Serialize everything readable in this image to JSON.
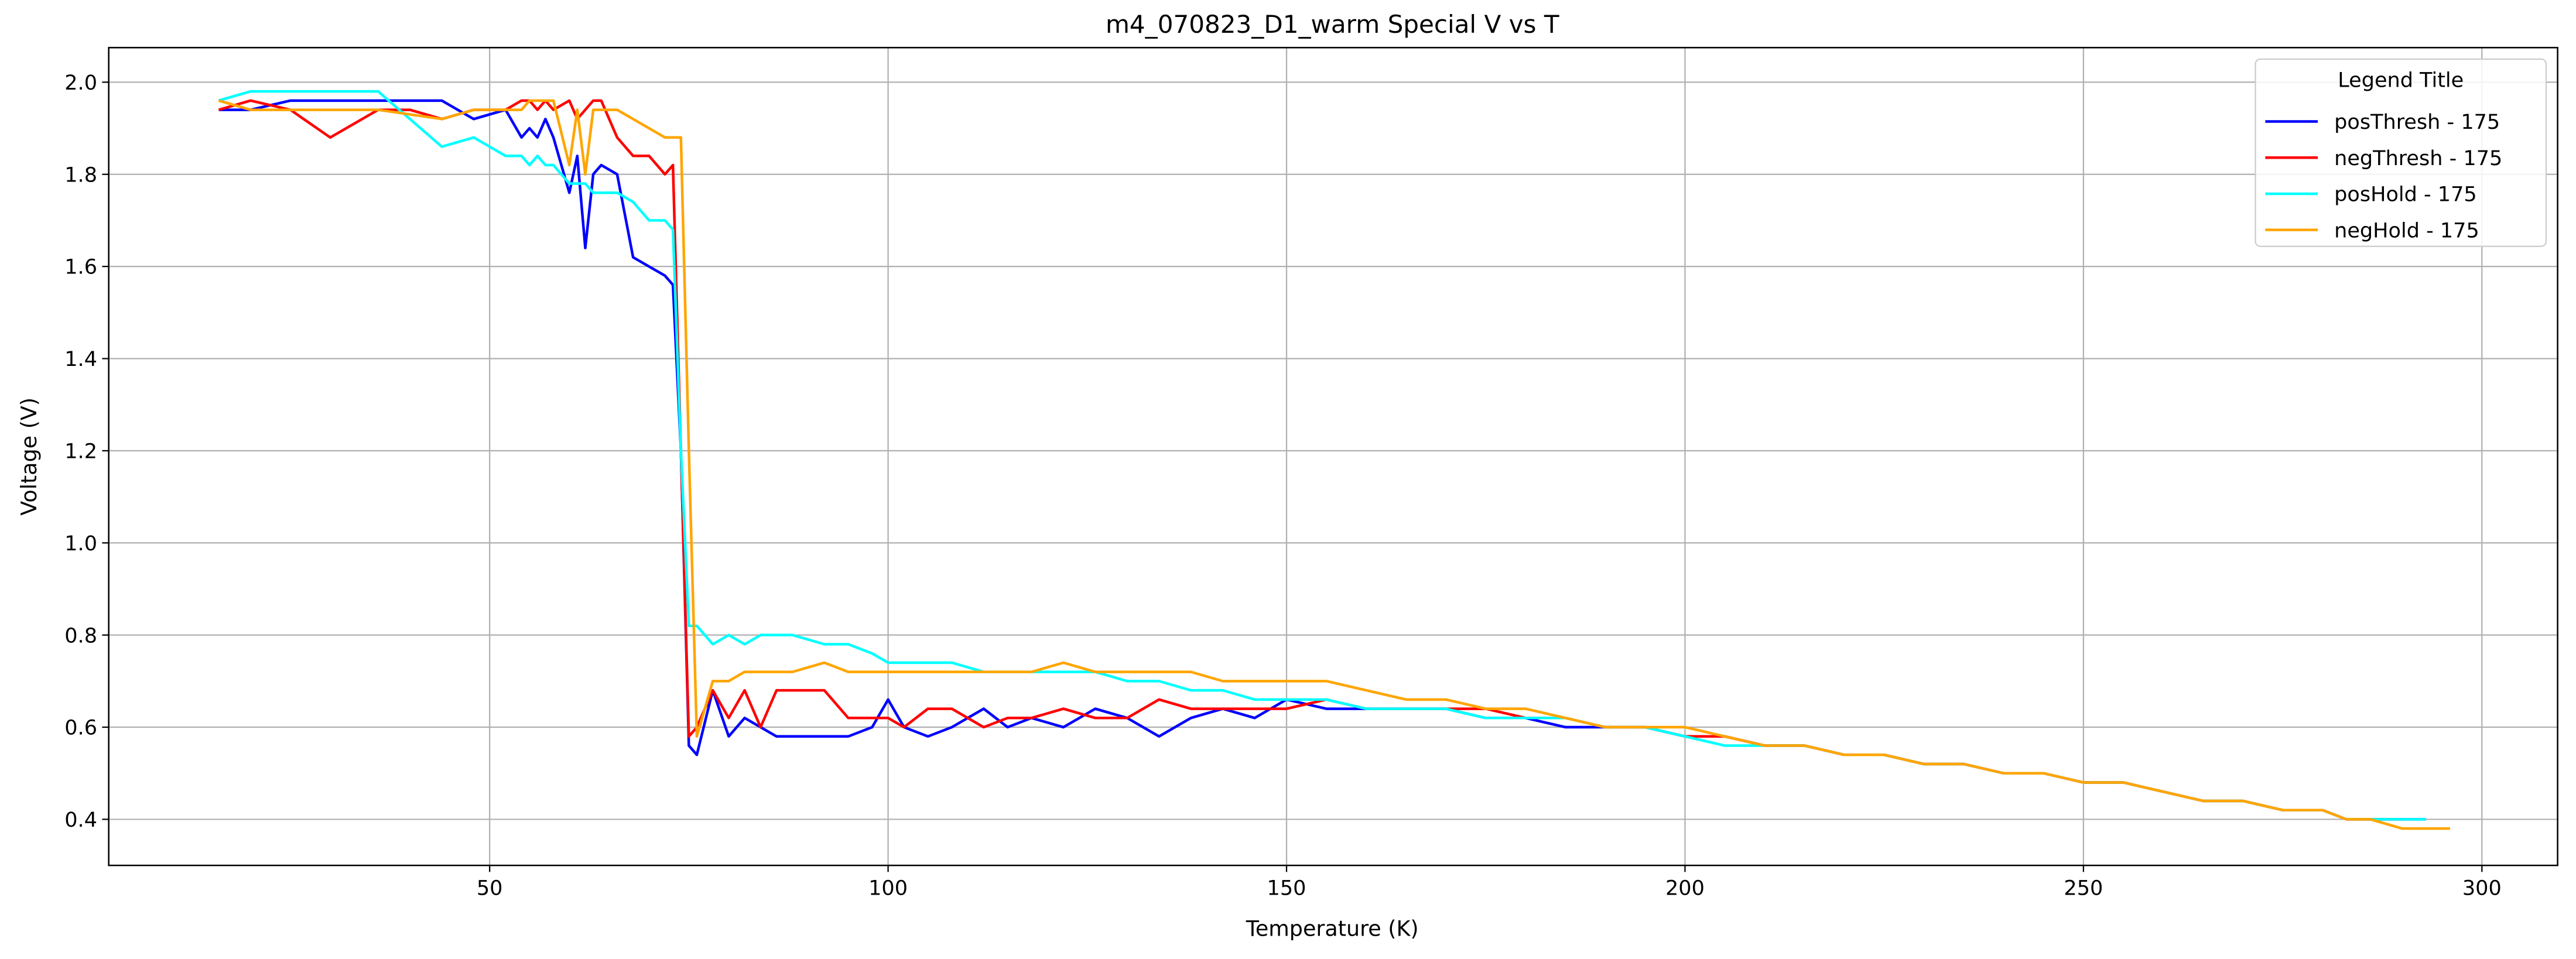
{
  "chart_data": {
    "type": "line",
    "title": "m4_070823_D1_warm Special V vs T",
    "x_label": "Temperature (K)",
    "y_label": "Voltage (V)",
    "x": [
      16,
      20,
      25,
      30,
      36,
      40,
      44,
      48,
      52,
      54,
      55,
      56,
      57,
      58,
      60,
      61,
      62,
      63,
      64,
      66,
      68,
      70,
      72,
      73,
      74,
      75,
      76,
      78,
      80,
      82,
      84,
      86,
      88,
      92,
      95,
      98,
      100,
      102,
      105,
      108,
      112,
      115,
      118,
      122,
      126,
      130,
      134,
      138,
      142,
      146,
      150,
      155,
      160,
      165,
      170,
      175,
      180,
      185,
      190,
      195,
      200,
      205,
      210,
      215,
      220,
      225,
      230,
      235,
      240,
      245,
      250,
      255,
      260,
      265,
      270,
      275,
      280,
      283,
      286,
      290,
      293,
      296
    ],
    "series": [
      {
        "name": "posThresh - 175",
        "color": "#0000ff",
        "values": [
          1.94,
          1.94,
          1.96,
          1.96,
          1.96,
          1.96,
          1.96,
          1.92,
          1.94,
          1.88,
          1.9,
          1.88,
          1.92,
          1.88,
          1.76,
          1.84,
          1.64,
          1.8,
          1.82,
          1.8,
          1.62,
          1.6,
          1.58,
          1.56,
          1.2,
          0.56,
          0.54,
          0.68,
          0.58,
          0.62,
          0.6,
          0.58,
          0.58,
          0.58,
          0.58,
          0.6,
          0.66,
          0.6,
          0.58,
          0.6,
          0.64,
          0.6,
          0.62,
          0.6,
          0.64,
          0.62,
          0.58,
          0.62,
          0.64,
          0.62,
          0.66,
          0.64,
          0.64,
          0.64,
          0.64,
          0.62,
          0.62,
          0.6,
          0.6,
          0.6,
          0.58,
          0.58,
          0.56,
          0.56,
          0.54,
          0.54,
          0.52,
          0.52,
          0.5,
          0.5,
          0.48,
          0.48,
          0.46,
          0.44,
          0.44,
          0.42,
          0.42,
          0.4,
          0.4,
          0.4,
          0.4,
          null
        ]
      },
      {
        "name": "negThresh - 175",
        "color": "#ff0000",
        "values": [
          1.94,
          1.96,
          1.94,
          1.88,
          1.94,
          1.94,
          1.92,
          1.94,
          1.94,
          1.96,
          1.96,
          1.94,
          1.96,
          1.94,
          1.96,
          1.92,
          1.94,
          1.96,
          1.96,
          1.88,
          1.84,
          1.84,
          1.8,
          1.82,
          1.2,
          0.58,
          0.6,
          0.68,
          0.62,
          0.68,
          0.6,
          0.68,
          0.68,
          0.68,
          0.62,
          0.62,
          0.62,
          0.6,
          0.64,
          0.64,
          0.6,
          0.62,
          0.62,
          0.64,
          0.62,
          0.62,
          0.66,
          0.64,
          0.64,
          0.64,
          0.64,
          0.66,
          0.64,
          0.64,
          0.64,
          0.64,
          0.62,
          0.62,
          0.6,
          0.6,
          0.58,
          0.58,
          0.56,
          0.56,
          0.54,
          0.54,
          0.52,
          0.52,
          0.5,
          0.5,
          0.48,
          0.48,
          0.46,
          0.44,
          0.44,
          0.42,
          0.42,
          0.4,
          0.4,
          0.4,
          null,
          null
        ]
      },
      {
        "name": "posHold - 175",
        "color": "#00ffff",
        "values": [
          1.96,
          1.98,
          1.98,
          1.98,
          1.98,
          1.92,
          1.86,
          1.88,
          1.84,
          1.84,
          1.82,
          1.84,
          1.82,
          1.82,
          1.78,
          1.78,
          1.78,
          1.76,
          1.76,
          1.76,
          1.74,
          1.7,
          1.7,
          1.68,
          1.2,
          0.82,
          0.82,
          0.78,
          0.8,
          0.78,
          0.8,
          0.8,
          0.8,
          0.78,
          0.78,
          0.76,
          0.74,
          0.74,
          0.74,
          0.74,
          0.72,
          0.72,
          0.72,
          0.72,
          0.72,
          0.7,
          0.7,
          0.68,
          0.68,
          0.66,
          0.66,
          0.66,
          0.64,
          0.64,
          0.64,
          0.62,
          0.62,
          0.62,
          0.6,
          0.6,
          0.58,
          0.56,
          0.56,
          0.56,
          0.54,
          0.54,
          0.52,
          0.52,
          0.5,
          0.5,
          0.48,
          0.48,
          0.46,
          0.44,
          0.44,
          0.42,
          0.42,
          0.4,
          0.4,
          0.4,
          0.4,
          null
        ]
      },
      {
        "name": "negHold - 175",
        "color": "#ffa500",
        "values": [
          1.96,
          1.94,
          1.94,
          1.94,
          1.94,
          1.93,
          1.92,
          1.94,
          1.94,
          1.94,
          1.96,
          1.96,
          1.96,
          1.96,
          1.82,
          1.94,
          1.8,
          1.94,
          1.94,
          1.94,
          1.92,
          1.9,
          1.88,
          1.88,
          1.88,
          1.2,
          0.58,
          0.7,
          0.7,
          0.72,
          0.72,
          0.72,
          0.72,
          0.74,
          0.72,
          0.72,
          0.72,
          0.72,
          0.72,
          0.72,
          0.72,
          0.72,
          0.72,
          0.74,
          0.72,
          0.72,
          0.72,
          0.72,
          0.7,
          0.7,
          0.7,
          0.7,
          0.68,
          0.66,
          0.66,
          0.64,
          0.64,
          0.62,
          0.6,
          0.6,
          0.6,
          0.58,
          0.56,
          0.56,
          0.54,
          0.54,
          0.52,
          0.52,
          0.5,
          0.5,
          0.48,
          0.48,
          0.46,
          0.44,
          0.44,
          0.42,
          0.42,
          0.4,
          0.4,
          0.38,
          0.38,
          0.38
        ]
      }
    ],
    "xlim": [
      2.2,
      309.5
    ],
    "ylim": [
      0.3,
      2.075
    ],
    "xticks": [
      50,
      100,
      150,
      200,
      250,
      300
    ],
    "yticks": [
      0.4,
      0.6,
      0.8,
      {
        "value": 1.0,
        "label": "1.0"
      },
      1.2,
      1.4,
      1.6,
      1.8,
      {
        "value": 2.0,
        "label": "2.0"
      }
    ],
    "grid": true,
    "legend_title": "Legend Title",
    "legend_position": "upper right"
  }
}
